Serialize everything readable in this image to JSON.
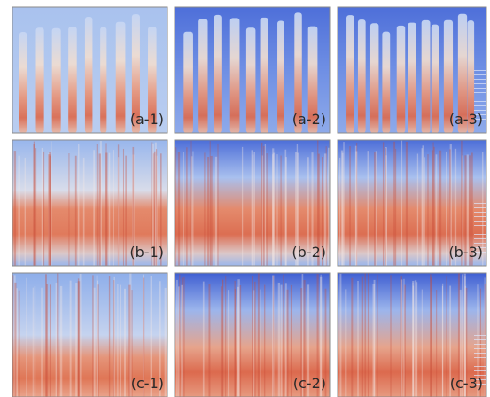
{
  "panels": [
    {
      "label": "(a-1)"
    },
    {
      "label": "(a-2)"
    },
    {
      "label": "(a-3)"
    },
    {
      "label": "(b-1)"
    },
    {
      "label": "(b-2)"
    },
    {
      "label": "(b-3)"
    },
    {
      "label": "(c-1)"
    },
    {
      "label": "(c-2)"
    },
    {
      "label": "(c-3)"
    }
  ]
}
